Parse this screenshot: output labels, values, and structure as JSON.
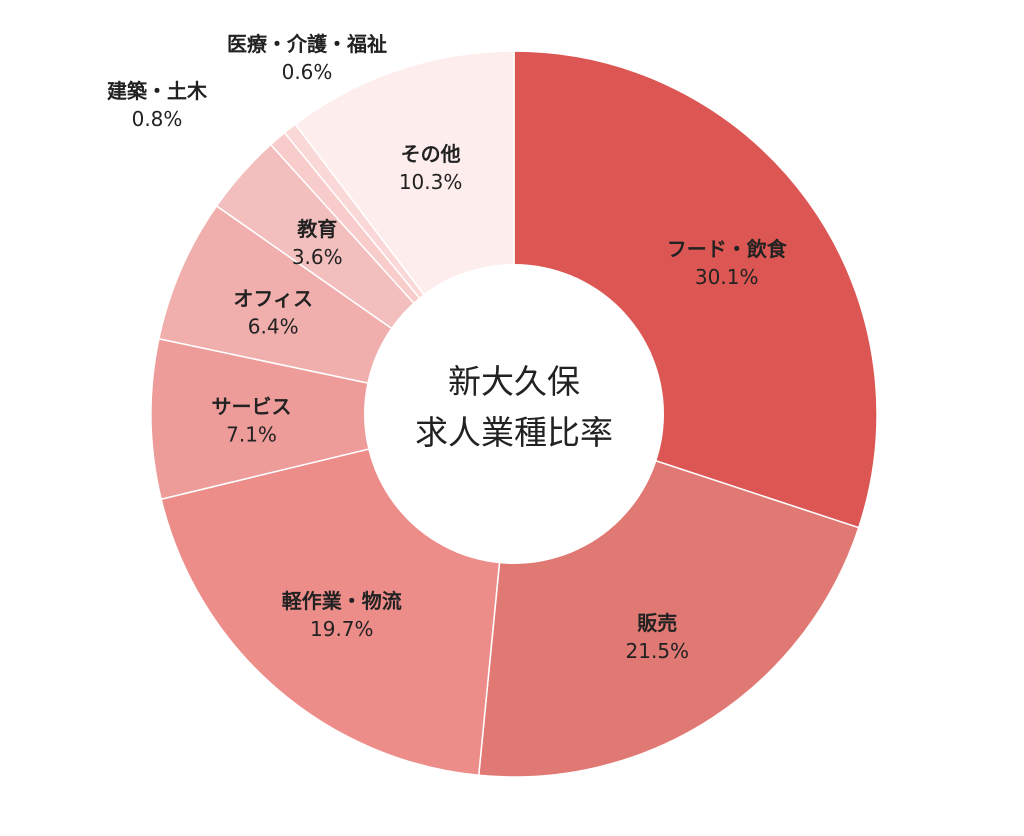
{
  "chart_data": {
    "type": "pie",
    "title": "新大久保\n求人業種比率",
    "title_lines": [
      "新大久保",
      "求人業種比率"
    ],
    "donut": true,
    "start_angle_deg": 0,
    "direction": "clockwise",
    "slices": [
      {
        "label": "フード・飲食",
        "value": 30.1,
        "display": "30.1%",
        "color": "#dc5753",
        "label_placement": "inside"
      },
      {
        "label": "販売",
        "value": 21.5,
        "display": "21.5%",
        "color": "#e07873",
        "label_placement": "inside"
      },
      {
        "label": "軽作業・物流",
        "value": 19.7,
        "display": "19.7%",
        "color": "#ed8d8a",
        "label_placement": "inside"
      },
      {
        "label": "サービス",
        "value": 7.1,
        "display": "7.1%",
        "color": "#ee9c9a",
        "label_placement": "inside"
      },
      {
        "label": "オフィス",
        "value": 6.4,
        "display": "6.4%",
        "color": "#f0aeac",
        "label_placement": "inside"
      },
      {
        "label": "教育",
        "value": 3.6,
        "display": "3.6%",
        "color": "#f3bfbe",
        "label_placement": "inside"
      },
      {
        "label": "建築・土木",
        "value": 0.8,
        "display": "0.8%",
        "color": "#f8cccb",
        "label_placement": "outside"
      },
      {
        "label": "医療・介護・福祉",
        "value": 0.6,
        "display": "0.6%",
        "color": "#fad8d7",
        "label_placement": "outside"
      },
      {
        "label": "その他",
        "value": 10.3,
        "display": "10.3%",
        "color": "#fdeeed",
        "label_placement": "inside"
      }
    ]
  }
}
